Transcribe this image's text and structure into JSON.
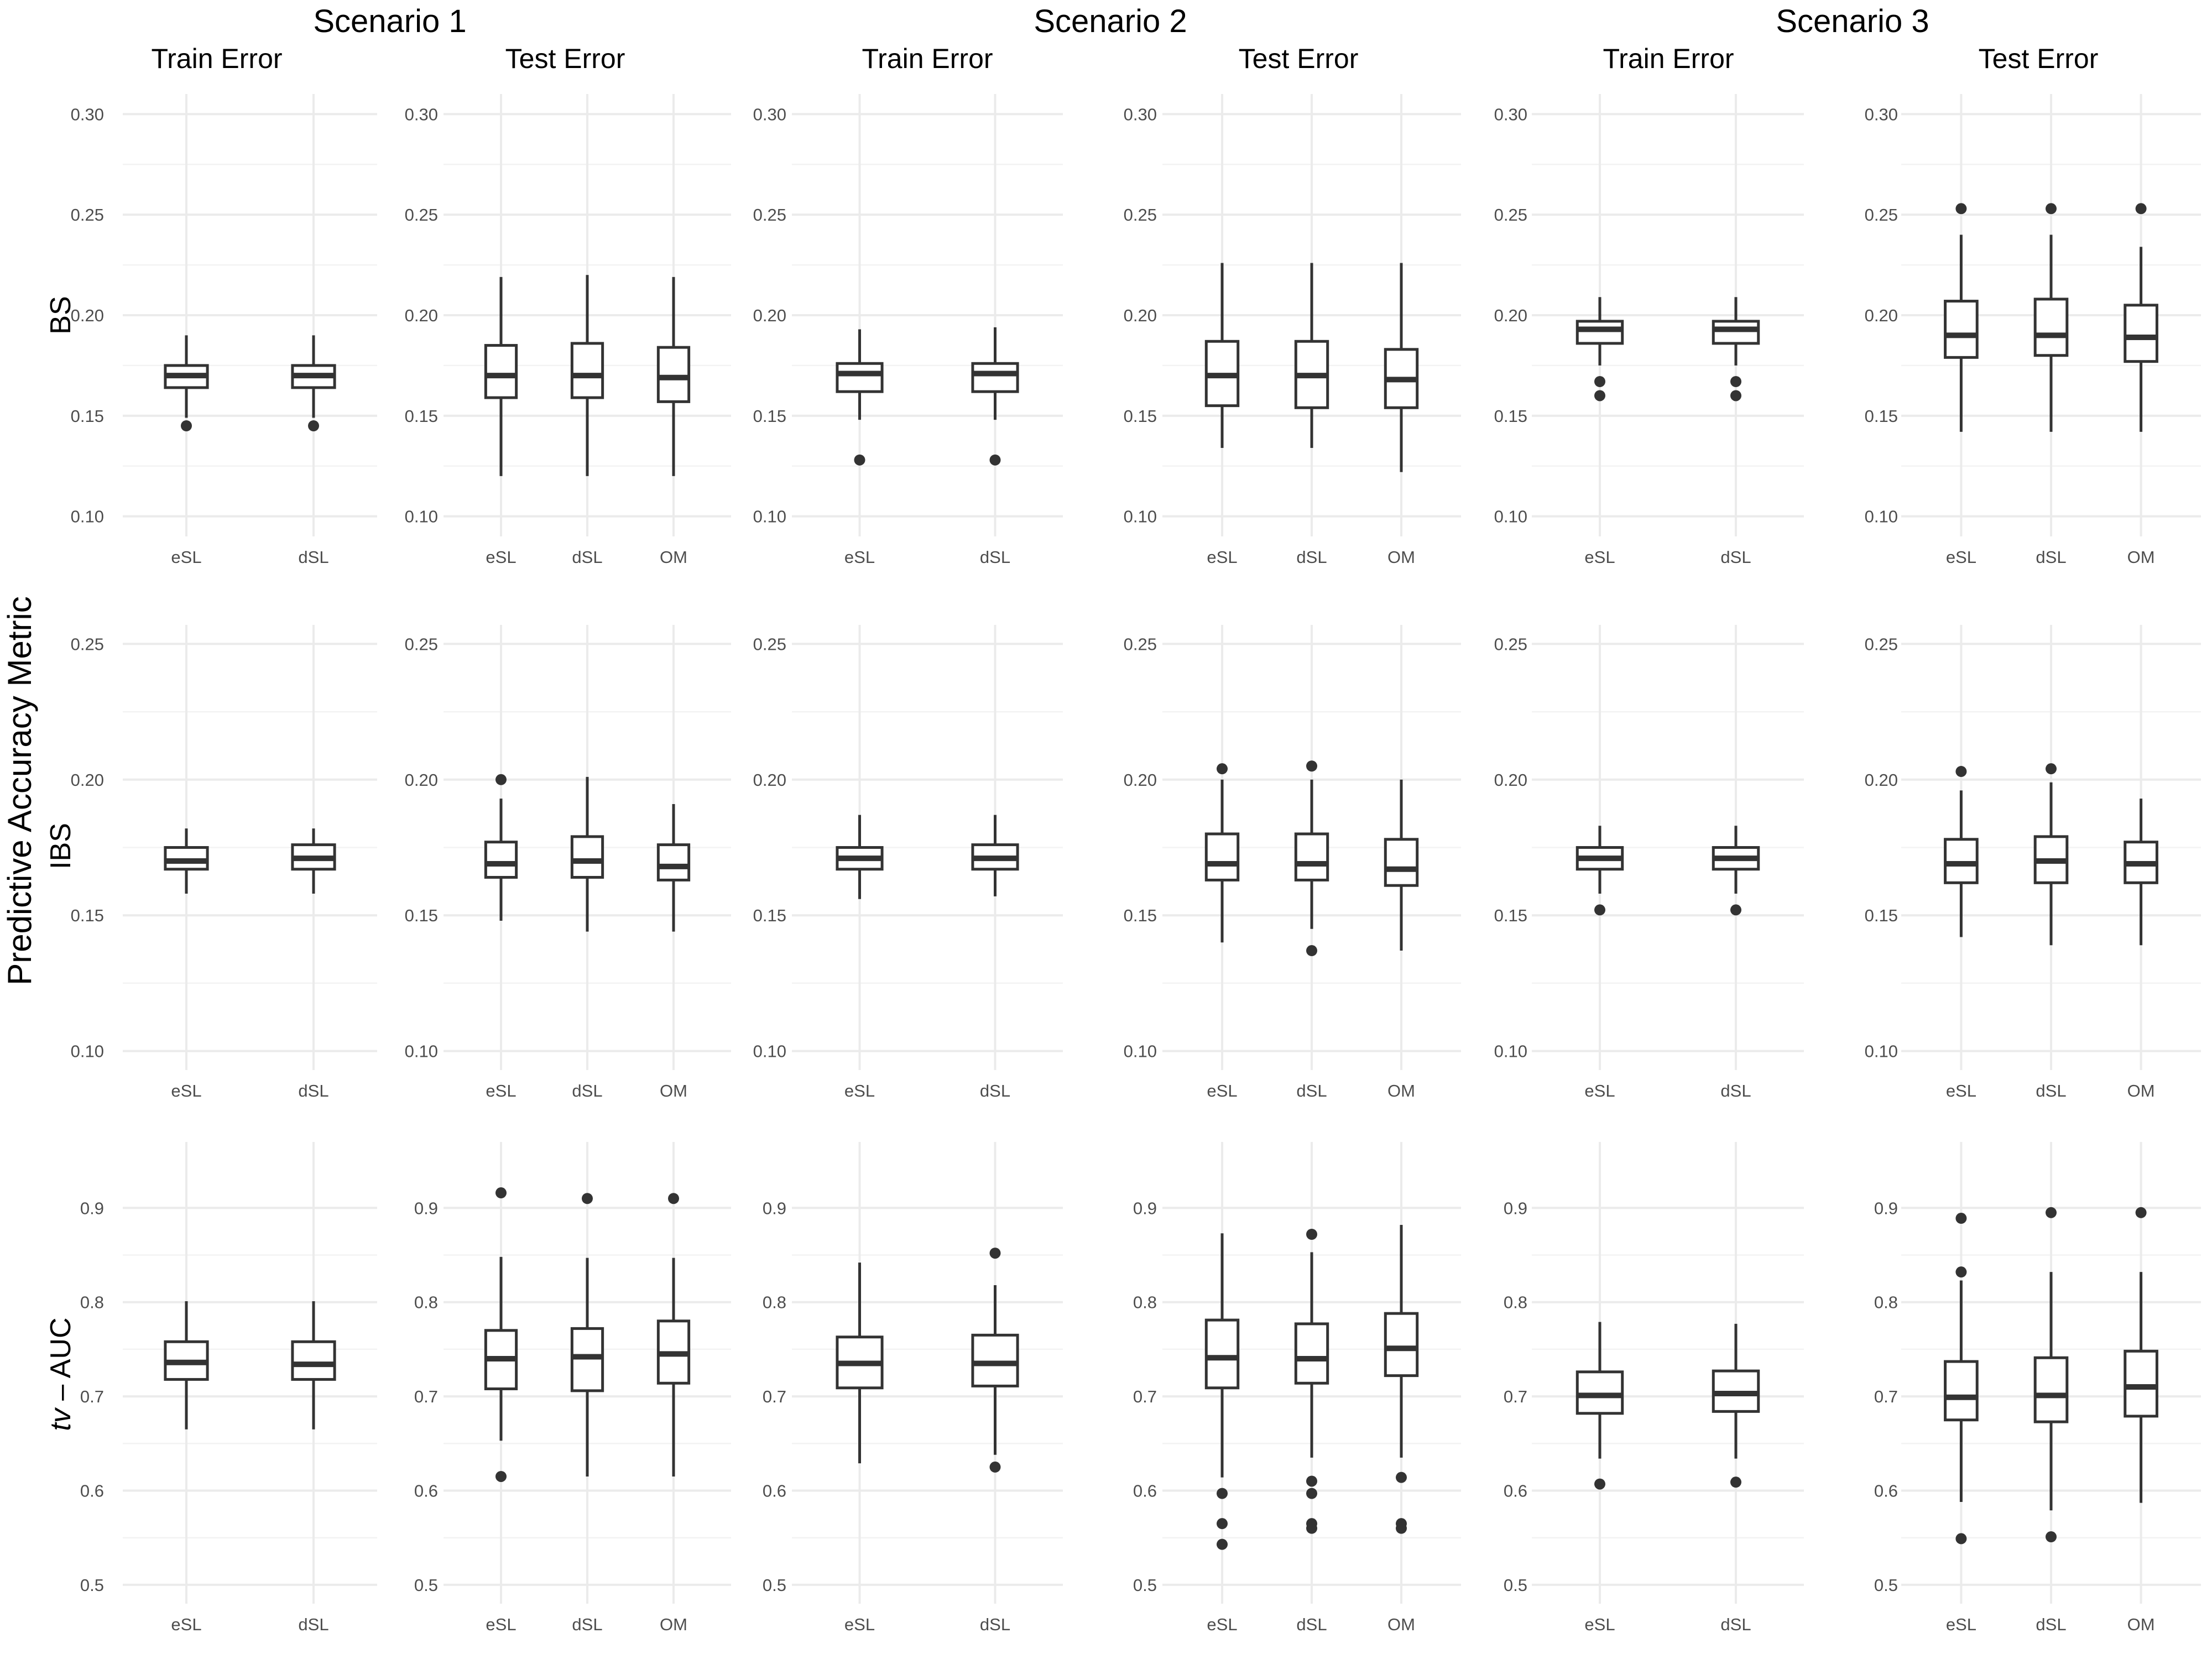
{
  "y_axis_label": "Predictive Accuracy Metric",
  "scenarios": [
    "Scenario 1",
    "Scenario 2",
    "Scenario 3"
  ],
  "columns": [
    "Train Error",
    "Test Error",
    "Train Error",
    "Test Error",
    "Train Error",
    "Test Error"
  ],
  "rows": [
    {
      "label": "BS",
      "label_italic_prefix": "",
      "label_rest": "BS"
    },
    {
      "label": "IBS",
      "label_italic_prefix": "",
      "label_rest": "IBS"
    },
    {
      "label": "tv – AUC",
      "label_italic_prefix": "tv",
      "label_rest": " – AUC"
    }
  ],
  "chart_data": {
    "type": "boxplot-grid",
    "y_axis_label": "Predictive Accuracy Metric",
    "rows": [
      {
        "metric": "BS",
        "ylim": [
          0.09,
          0.31
        ],
        "yticks": [
          0.1,
          0.15,
          0.2,
          0.25,
          0.3
        ],
        "ytick_labels": [
          "0.10",
          "0.15",
          "0.20",
          "0.25",
          "0.30"
        ],
        "panels": [
          {
            "scenario": "Scenario 1",
            "error": "Train Error",
            "boxes": [
              {
                "label": "eSL",
                "whislo": 0.149,
                "q1": 0.164,
                "med": 0.17,
                "q3": 0.175,
                "whishi": 0.19,
                "outliers": [
                  0.145
                ]
              },
              {
                "label": "dSL",
                "whislo": 0.149,
                "q1": 0.164,
                "med": 0.17,
                "q3": 0.175,
                "whishi": 0.19,
                "outliers": [
                  0.145
                ]
              }
            ]
          },
          {
            "scenario": "Scenario 1",
            "error": "Test Error",
            "boxes": [
              {
                "label": "eSL",
                "whislo": 0.12,
                "q1": 0.159,
                "med": 0.17,
                "q3": 0.185,
                "whishi": 0.219,
                "outliers": []
              },
              {
                "label": "dSL",
                "whislo": 0.12,
                "q1": 0.159,
                "med": 0.17,
                "q3": 0.186,
                "whishi": 0.22,
                "outliers": []
              },
              {
                "label": "OM",
                "whislo": 0.12,
                "q1": 0.157,
                "med": 0.169,
                "q3": 0.184,
                "whishi": 0.219,
                "outliers": []
              }
            ]
          },
          {
            "scenario": "Scenario 2",
            "error": "Train Error",
            "boxes": [
              {
                "label": "eSL",
                "whislo": 0.148,
                "q1": 0.162,
                "med": 0.171,
                "q3": 0.176,
                "whishi": 0.193,
                "outliers": [
                  0.128
                ]
              },
              {
                "label": "dSL",
                "whislo": 0.148,
                "q1": 0.162,
                "med": 0.171,
                "q3": 0.176,
                "whishi": 0.194,
                "outliers": [
                  0.128
                ]
              }
            ]
          },
          {
            "scenario": "Scenario 2",
            "error": "Test Error",
            "boxes": [
              {
                "label": "eSL",
                "whislo": 0.134,
                "q1": 0.155,
                "med": 0.17,
                "q3": 0.187,
                "whishi": 0.226,
                "outliers": []
              },
              {
                "label": "dSL",
                "whislo": 0.134,
                "q1": 0.154,
                "med": 0.17,
                "q3": 0.187,
                "whishi": 0.226,
                "outliers": []
              },
              {
                "label": "OM",
                "whislo": 0.122,
                "q1": 0.154,
                "med": 0.168,
                "q3": 0.183,
                "whishi": 0.226,
                "outliers": []
              }
            ]
          },
          {
            "scenario": "Scenario 3",
            "error": "Train Error",
            "boxes": [
              {
                "label": "eSL",
                "whislo": 0.175,
                "q1": 0.186,
                "med": 0.193,
                "q3": 0.197,
                "whishi": 0.209,
                "outliers": [
                  0.167,
                  0.16
                ]
              },
              {
                "label": "dSL",
                "whislo": 0.175,
                "q1": 0.186,
                "med": 0.193,
                "q3": 0.197,
                "whishi": 0.209,
                "outliers": [
                  0.167,
                  0.16
                ]
              }
            ]
          },
          {
            "scenario": "Scenario 3",
            "error": "Test Error",
            "boxes": [
              {
                "label": "eSL",
                "whislo": 0.142,
                "q1": 0.179,
                "med": 0.19,
                "q3": 0.207,
                "whishi": 0.24,
                "outliers": [
                  0.253
                ]
              },
              {
                "label": "dSL",
                "whislo": 0.142,
                "q1": 0.18,
                "med": 0.19,
                "q3": 0.208,
                "whishi": 0.24,
                "outliers": [
                  0.253
                ]
              },
              {
                "label": "OM",
                "whislo": 0.142,
                "q1": 0.177,
                "med": 0.189,
                "q3": 0.205,
                "whishi": 0.234,
                "outliers": [
                  0.253
                ]
              }
            ]
          }
        ]
      },
      {
        "metric": "IBS",
        "ylim": [
          0.093,
          0.257
        ],
        "yticks": [
          0.1,
          0.15,
          0.2,
          0.25
        ],
        "ytick_labels": [
          "0.10",
          "0.15",
          "0.20",
          "0.25"
        ],
        "panels": [
          {
            "scenario": "Scenario 1",
            "error": "Train Error",
            "boxes": [
              {
                "label": "eSL",
                "whislo": 0.158,
                "q1": 0.167,
                "med": 0.17,
                "q3": 0.175,
                "whishi": 0.182,
                "outliers": []
              },
              {
                "label": "dSL",
                "whislo": 0.158,
                "q1": 0.167,
                "med": 0.171,
                "q3": 0.176,
                "whishi": 0.182,
                "outliers": []
              }
            ]
          },
          {
            "scenario": "Scenario 1",
            "error": "Test Error",
            "boxes": [
              {
                "label": "eSL",
                "whislo": 0.148,
                "q1": 0.164,
                "med": 0.169,
                "q3": 0.177,
                "whishi": 0.193,
                "outliers": [
                  0.2
                ]
              },
              {
                "label": "dSL",
                "whislo": 0.144,
                "q1": 0.164,
                "med": 0.17,
                "q3": 0.179,
                "whishi": 0.201,
                "outliers": []
              },
              {
                "label": "OM",
                "whislo": 0.144,
                "q1": 0.163,
                "med": 0.168,
                "q3": 0.176,
                "whishi": 0.191,
                "outliers": []
              }
            ]
          },
          {
            "scenario": "Scenario 2",
            "error": "Train Error",
            "boxes": [
              {
                "label": "eSL",
                "whislo": 0.156,
                "q1": 0.167,
                "med": 0.171,
                "q3": 0.175,
                "whishi": 0.187,
                "outliers": []
              },
              {
                "label": "dSL",
                "whislo": 0.157,
                "q1": 0.167,
                "med": 0.171,
                "q3": 0.176,
                "whishi": 0.187,
                "outliers": []
              }
            ]
          },
          {
            "scenario": "Scenario 2",
            "error": "Test Error",
            "boxes": [
              {
                "label": "eSL",
                "whislo": 0.14,
                "q1": 0.163,
                "med": 0.169,
                "q3": 0.18,
                "whishi": 0.2,
                "outliers": [
                  0.204
                ]
              },
              {
                "label": "dSL",
                "whislo": 0.145,
                "q1": 0.163,
                "med": 0.169,
                "q3": 0.18,
                "whishi": 0.2,
                "outliers": [
                  0.205,
                  0.137
                ]
              },
              {
                "label": "OM",
                "whislo": 0.137,
                "q1": 0.161,
                "med": 0.167,
                "q3": 0.178,
                "whishi": 0.2,
                "outliers": []
              }
            ]
          },
          {
            "scenario": "Scenario 3",
            "error": "Train Error",
            "boxes": [
              {
                "label": "eSL",
                "whislo": 0.158,
                "q1": 0.167,
                "med": 0.171,
                "q3": 0.175,
                "whishi": 0.183,
                "outliers": [
                  0.152
                ]
              },
              {
                "label": "dSL",
                "whislo": 0.158,
                "q1": 0.167,
                "med": 0.171,
                "q3": 0.175,
                "whishi": 0.183,
                "outliers": [
                  0.152
                ]
              }
            ]
          },
          {
            "scenario": "Scenario 3",
            "error": "Test Error",
            "boxes": [
              {
                "label": "eSL",
                "whislo": 0.142,
                "q1": 0.162,
                "med": 0.169,
                "q3": 0.178,
                "whishi": 0.196,
                "outliers": [
                  0.203
                ]
              },
              {
                "label": "dSL",
                "whislo": 0.139,
                "q1": 0.162,
                "med": 0.17,
                "q3": 0.179,
                "whishi": 0.199,
                "outliers": [
                  0.204
                ]
              },
              {
                "label": "OM",
                "whislo": 0.139,
                "q1": 0.162,
                "med": 0.169,
                "q3": 0.177,
                "whishi": 0.193,
                "outliers": []
              }
            ]
          }
        ]
      },
      {
        "metric": "tv – AUC",
        "ylim": [
          0.48,
          0.97
        ],
        "yticks": [
          0.5,
          0.6,
          0.7,
          0.8,
          0.9
        ],
        "ytick_labels": [
          "0.5",
          "0.6",
          "0.7",
          "0.8",
          "0.9"
        ],
        "panels": [
          {
            "scenario": "Scenario 1",
            "error": "Train Error",
            "boxes": [
              {
                "label": "eSL",
                "whislo": 0.665,
                "q1": 0.718,
                "med": 0.736,
                "q3": 0.758,
                "whishi": 0.801,
                "outliers": []
              },
              {
                "label": "dSL",
                "whislo": 0.665,
                "q1": 0.718,
                "med": 0.734,
                "q3": 0.758,
                "whishi": 0.801,
                "outliers": []
              }
            ]
          },
          {
            "scenario": "Scenario 1",
            "error": "Test Error",
            "boxes": [
              {
                "label": "eSL",
                "whislo": 0.653,
                "q1": 0.708,
                "med": 0.74,
                "q3": 0.77,
                "whishi": 0.848,
                "outliers": [
                  0.916,
                  0.615
                ]
              },
              {
                "label": "dSL",
                "whislo": 0.615,
                "q1": 0.706,
                "med": 0.742,
                "q3": 0.772,
                "whishi": 0.847,
                "outliers": [
                  0.91
                ]
              },
              {
                "label": "OM",
                "whislo": 0.615,
                "q1": 0.714,
                "med": 0.745,
                "q3": 0.78,
                "whishi": 0.847,
                "outliers": [
                  0.91
                ]
              }
            ]
          },
          {
            "scenario": "Scenario 2",
            "error": "Train Error",
            "boxes": [
              {
                "label": "eSL",
                "whislo": 0.629,
                "q1": 0.709,
                "med": 0.735,
                "q3": 0.763,
                "whishi": 0.842,
                "outliers": []
              },
              {
                "label": "dSL",
                "whislo": 0.638,
                "q1": 0.711,
                "med": 0.735,
                "q3": 0.765,
                "whishi": 0.818,
                "outliers": [
                  0.852,
                  0.625
                ]
              }
            ]
          },
          {
            "scenario": "Scenario 2",
            "error": "Test Error",
            "boxes": [
              {
                "label": "eSL",
                "whislo": 0.614,
                "q1": 0.709,
                "med": 0.741,
                "q3": 0.781,
                "whishi": 0.873,
                "outliers": [
                  0.597,
                  0.565,
                  0.543
                ]
              },
              {
                "label": "dSL",
                "whislo": 0.635,
                "q1": 0.714,
                "med": 0.74,
                "q3": 0.777,
                "whishi": 0.853,
                "outliers": [
                  0.872,
                  0.61,
                  0.597,
                  0.565,
                  0.56
                ]
              },
              {
                "label": "OM",
                "whislo": 0.635,
                "q1": 0.722,
                "med": 0.751,
                "q3": 0.788,
                "whishi": 0.882,
                "outliers": [
                  0.614,
                  0.565,
                  0.56
                ]
              }
            ]
          },
          {
            "scenario": "Scenario 3",
            "error": "Train Error",
            "boxes": [
              {
                "label": "eSL",
                "whislo": 0.634,
                "q1": 0.682,
                "med": 0.701,
                "q3": 0.726,
                "whishi": 0.779,
                "outliers": [
                  0.607
                ]
              },
              {
                "label": "dSL",
                "whislo": 0.634,
                "q1": 0.684,
                "med": 0.703,
                "q3": 0.727,
                "whishi": 0.777,
                "outliers": [
                  0.609
                ]
              }
            ]
          },
          {
            "scenario": "Scenario 3",
            "error": "Test Error",
            "boxes": [
              {
                "label": "eSL",
                "whislo": 0.588,
                "q1": 0.675,
                "med": 0.699,
                "q3": 0.737,
                "whishi": 0.823,
                "outliers": [
                  0.889,
                  0.832,
                  0.549
                ]
              },
              {
                "label": "dSL",
                "whislo": 0.579,
                "q1": 0.673,
                "med": 0.701,
                "q3": 0.741,
                "whishi": 0.832,
                "outliers": [
                  0.895,
                  0.551
                ]
              },
              {
                "label": "OM",
                "whislo": 0.587,
                "q1": 0.679,
                "med": 0.71,
                "q3": 0.748,
                "whishi": 0.832,
                "outliers": [
                  0.895
                ]
              }
            ]
          }
        ]
      }
    ]
  }
}
